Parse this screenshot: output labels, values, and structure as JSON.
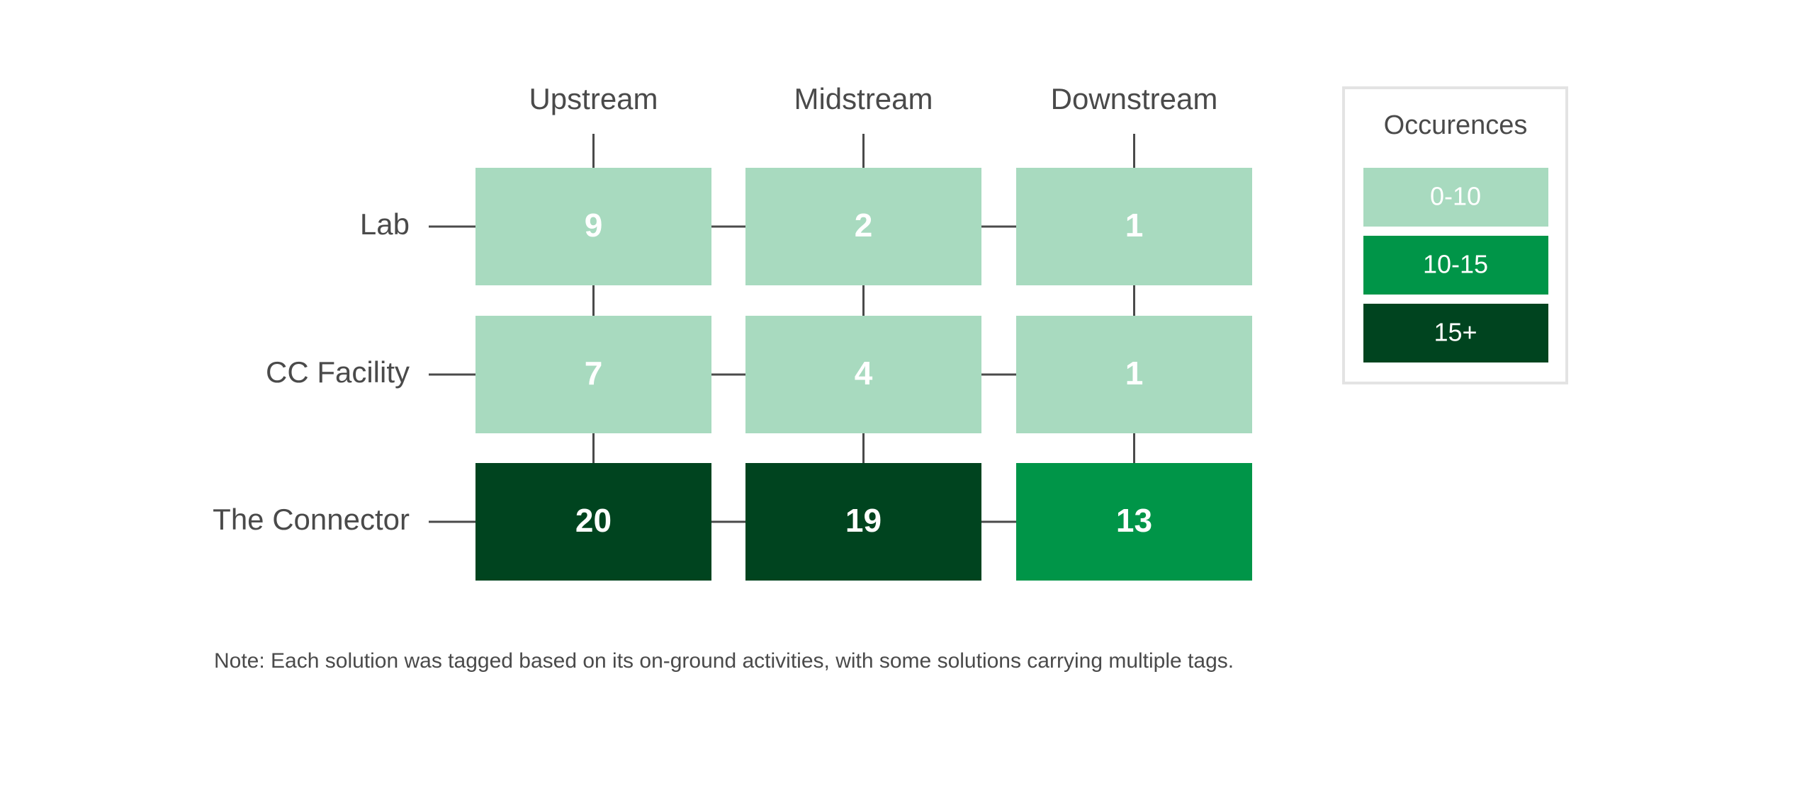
{
  "chart_data": {
    "type": "heatmap",
    "columns": [
      "Upstream",
      "Midstream",
      "Downstream"
    ],
    "rows": [
      "Lab",
      "CC Facility",
      "The Connector"
    ],
    "values": [
      [
        9,
        2,
        1
      ],
      [
        7,
        4,
        1
      ],
      [
        20,
        19,
        13
      ]
    ],
    "legend": {
      "title": "Occurences",
      "bins": [
        {
          "label": "0-10",
          "range": [
            0,
            10
          ],
          "color": "#a8dabf"
        },
        {
          "label": "10-15",
          "range": [
            10,
            15
          ],
          "color": "#009548"
        },
        {
          "label": "15+",
          "range": [
            15,
            null
          ],
          "color": "#00441f"
        }
      ]
    },
    "note": "Note: Each solution was tagged based on its on-ground activities, with some solutions carrying multiple tags."
  }
}
